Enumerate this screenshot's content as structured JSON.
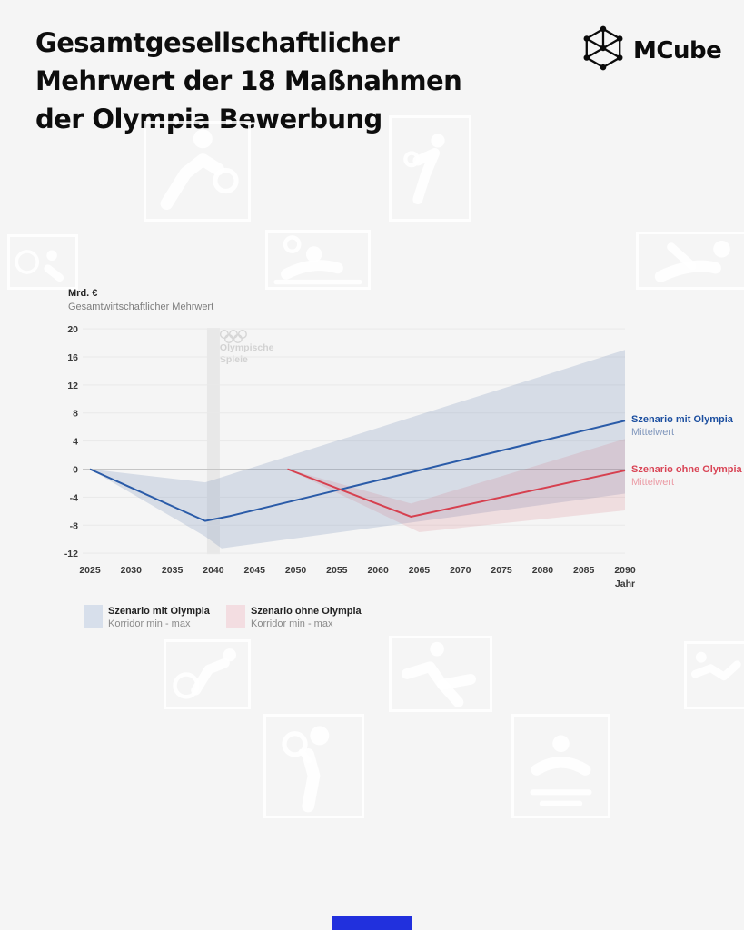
{
  "colors": {
    "background": "#f5f5f5",
    "blue_line": "#2a5ba8",
    "blue_label": "#1c4fa0",
    "blue_sublabel": "#7e95bb",
    "blue_band": "rgba(104,132,178,0.22)",
    "red_line": "#d6404f",
    "red_label": "#d94556",
    "red_sublabel": "#eb9aa4",
    "red_band": "rgba(209,100,115,0.16)",
    "grid": "#e9e9e9",
    "zero_line": "#c6c6c6",
    "event_band": "#e8e8e8",
    "footer_bar": "#2130dd"
  },
  "header": {
    "title_lines": [
      "Gesamtgesellschaftlicher",
      "Mehrwert der 18 Maßnahmen",
      "der Olympia Bewerbung"
    ],
    "brand": "MCube"
  },
  "chart_data": {
    "type": "line",
    "unit": "Mrd. €",
    "axis_subtitle": "Gesamtwirtschaftlicher Mehrwert",
    "x_label": "Jahr",
    "x_ticks": [
      2025,
      2030,
      2035,
      2040,
      2045,
      2050,
      2055,
      2060,
      2065,
      2070,
      2075,
      2080,
      2085,
      2090
    ],
    "y_ticks": [
      20,
      16,
      12,
      8,
      4,
      0,
      -4,
      -8,
      -12
    ],
    "xlim": [
      2025,
      2090
    ],
    "ylim": [
      -12,
      20
    ],
    "grid": "horizontal-only",
    "event_band": {
      "year": 2040,
      "lines": [
        "Olympische",
        "Spiele"
      ],
      "icon": "olympic-rings-icon"
    },
    "series": [
      {
        "id": "mit-olympia",
        "name": "Szenario mit Olympia",
        "sublabel": "Mittelwert",
        "mean": [
          [
            2025,
            0
          ],
          [
            2039,
            -7.4
          ],
          [
            2042,
            -6.7
          ],
          [
            2090,
            6.9
          ]
        ],
        "corridor_upper": [
          [
            2025,
            0
          ],
          [
            2039,
            -1.9
          ],
          [
            2090,
            17
          ]
        ],
        "corridor_lower": [
          [
            2025,
            0
          ],
          [
            2039,
            -9.6
          ],
          [
            2041,
            -11.3
          ],
          [
            2090,
            -3.5
          ]
        ]
      },
      {
        "id": "ohne-olympia",
        "name": "Szenario ohne Olympia",
        "sublabel": "Mittelwert",
        "mean": [
          [
            2049,
            0
          ],
          [
            2064,
            -6.8
          ],
          [
            2090,
            -0.2
          ]
        ],
        "corridor_upper": [
          [
            2049,
            0
          ],
          [
            2064,
            -4.9
          ],
          [
            2090,
            4.3
          ]
        ],
        "corridor_lower": [
          [
            2049,
            0
          ],
          [
            2065,
            -9.0
          ],
          [
            2090,
            -5.9
          ]
        ]
      }
    ],
    "legend": [
      {
        "label": "Szenario mit Olympia",
        "sublabel": "Korridor min - max",
        "swatch": "#d7dfeb"
      },
      {
        "label": "Szenario ohne Olympia",
        "sublabel": "Korridor min - max",
        "swatch": "#f3dde1"
      }
    ]
  },
  "decor": {
    "pictograms": [
      "handball",
      "boxing",
      "hoop-gymnastics",
      "water-polo",
      "archery",
      "cycling",
      "taekwondo",
      "gymnastics",
      "tennis",
      "swimming"
    ]
  }
}
